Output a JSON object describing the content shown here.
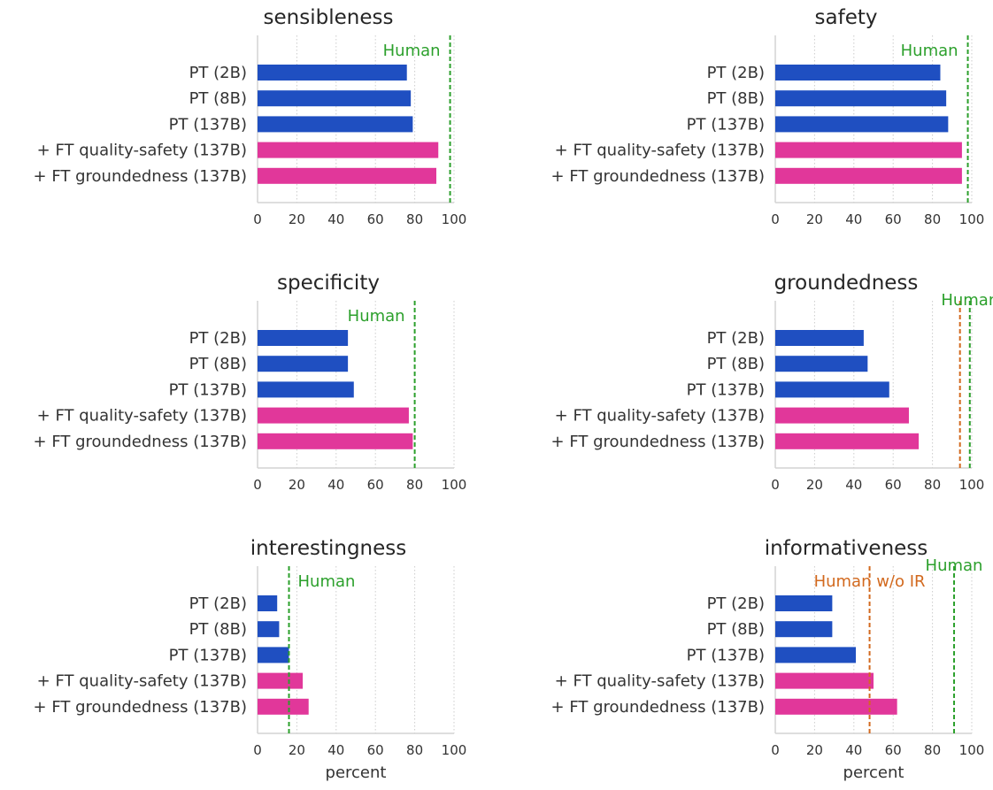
{
  "chart_data": [
    {
      "type": "bar",
      "orientation": "horizontal",
      "title": "sensibleness",
      "categories": [
        "PT (2B)",
        "PT (8B)",
        "PT (137B)",
        "+ FT quality-safety (137B)",
        "+ FT groundedness (137B)"
      ],
      "values": [
        76,
        78,
        79,
        92,
        91
      ],
      "bar_colors": [
        "#1f4fc1",
        "#1f4fc1",
        "#1f4fc1",
        "#e1379a",
        "#e1379a"
      ],
      "xlim": [
        0,
        100
      ],
      "xticks": [
        0,
        20,
        40,
        60,
        80,
        100
      ],
      "xlabel": "",
      "grid": "vertical dotted",
      "reference_lines": [
        {
          "label": "Human",
          "value": 98,
          "color": "#2ca02c",
          "label_side": "left"
        }
      ]
    },
    {
      "type": "bar",
      "orientation": "horizontal",
      "title": "safety",
      "categories": [
        "PT (2B)",
        "PT (8B)",
        "PT (137B)",
        "+ FT quality-safety (137B)",
        "+ FT groundedness (137B)"
      ],
      "values": [
        84,
        87,
        88,
        95,
        95
      ],
      "bar_colors": [
        "#1f4fc1",
        "#1f4fc1",
        "#1f4fc1",
        "#e1379a",
        "#e1379a"
      ],
      "xlim": [
        0,
        100
      ],
      "xticks": [
        0,
        20,
        40,
        60,
        80,
        100
      ],
      "xlabel": "",
      "grid": "vertical dotted",
      "reference_lines": [
        {
          "label": "Human",
          "value": 98,
          "color": "#2ca02c",
          "label_side": "left"
        }
      ]
    },
    {
      "type": "bar",
      "orientation": "horizontal",
      "title": "specificity",
      "categories": [
        "PT (2B)",
        "PT (8B)",
        "PT (137B)",
        "+ FT quality-safety (137B)",
        "+ FT groundedness (137B)"
      ],
      "values": [
        46,
        46,
        49,
        77,
        79
      ],
      "bar_colors": [
        "#1f4fc1",
        "#1f4fc1",
        "#1f4fc1",
        "#e1379a",
        "#e1379a"
      ],
      "xlim": [
        0,
        100
      ],
      "xticks": [
        0,
        20,
        40,
        60,
        80,
        100
      ],
      "xlabel": "",
      "grid": "vertical dotted",
      "reference_lines": [
        {
          "label": "Human",
          "value": 80,
          "color": "#2ca02c",
          "label_side": "left"
        }
      ]
    },
    {
      "type": "bar",
      "orientation": "horizontal",
      "title": "groundedness",
      "categories": [
        "PT (2B)",
        "PT (8B)",
        "PT (137B)",
        "+ FT quality-safety (137B)",
        "+ FT groundedness (137B)"
      ],
      "values": [
        45,
        47,
        58,
        68,
        73
      ],
      "bar_colors": [
        "#1f4fc1",
        "#1f4fc1",
        "#1f4fc1",
        "#e1379a",
        "#e1379a"
      ],
      "xlim": [
        0,
        100
      ],
      "xticks": [
        0,
        20,
        40,
        60,
        80,
        100
      ],
      "xlabel": "",
      "grid": "vertical dotted",
      "reference_lines": [
        {
          "label": "",
          "value": 94,
          "color": "#d2691e",
          "label_side": "left"
        },
        {
          "label": "Human",
          "value": 99,
          "color": "#2ca02c",
          "label_side": "center-high"
        }
      ]
    },
    {
      "type": "bar",
      "orientation": "horizontal",
      "title": "interestingness",
      "categories": [
        "PT (2B)",
        "PT (8B)",
        "PT (137B)",
        "+ FT quality-safety (137B)",
        "+ FT groundedness (137B)"
      ],
      "values": [
        10,
        11,
        16,
        23,
        26
      ],
      "bar_colors": [
        "#1f4fc1",
        "#1f4fc1",
        "#1f4fc1",
        "#e1379a",
        "#e1379a"
      ],
      "xlim": [
        0,
        100
      ],
      "xticks": [
        0,
        20,
        40,
        60,
        80,
        100
      ],
      "xlabel": "percent",
      "grid": "vertical dotted",
      "reference_lines": [
        {
          "label": "Human",
          "value": 16,
          "color": "#2ca02c",
          "label_side": "right"
        }
      ]
    },
    {
      "type": "bar",
      "orientation": "horizontal",
      "title": "informativeness",
      "categories": [
        "PT (2B)",
        "PT (8B)",
        "PT (137B)",
        "+ FT quality-safety (137B)",
        "+ FT groundedness (137B)"
      ],
      "values": [
        29,
        29,
        41,
        50,
        62
      ],
      "bar_colors": [
        "#1f4fc1",
        "#1f4fc1",
        "#1f4fc1",
        "#e1379a",
        "#e1379a"
      ],
      "xlim": [
        0,
        100
      ],
      "xticks": [
        0,
        20,
        40,
        60,
        80,
        100
      ],
      "xlabel": "percent",
      "grid": "vertical dotted",
      "reference_lines": [
        {
          "label": "Human w/o IR",
          "value": 48,
          "color": "#d2691e",
          "label_side": "center-mid"
        },
        {
          "label": "Human",
          "value": 91,
          "color": "#2ca02c",
          "label_side": "center-high"
        }
      ]
    }
  ]
}
